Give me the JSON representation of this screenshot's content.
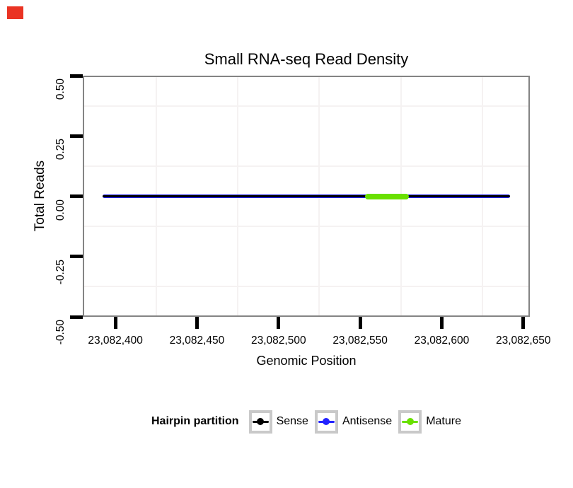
{
  "record_indicator": {
    "color": "#ea3323"
  },
  "chart_data": {
    "type": "segment",
    "title": "Small RNA-seq Read Density",
    "xlabel": "Genomic Position",
    "ylabel": "Total Reads",
    "xlim": [
      23082380,
      23082654
    ],
    "ylim": [
      -0.5,
      0.5
    ],
    "x_ticks": {
      "values": [
        23082400,
        23082450,
        23082500,
        23082550,
        23082600,
        23082650
      ],
      "labels": [
        "23,082,400",
        "23,082,450",
        "23,082,500",
        "23,082,550",
        "23,082,600",
        "23,082,650"
      ]
    },
    "y_ticks": {
      "values": [
        0.5,
        0.25,
        0.0,
        -0.25,
        -0.5
      ],
      "labels": [
        "0.50",
        "0.25",
        "0.00",
        "-0.25",
        "-0.50"
      ]
    },
    "minor_gridlines_x": [
      23082425,
      23082475,
      23082525,
      23082575,
      23082625
    ],
    "minor_gridlines_y": [
      0.375,
      0.125,
      -0.125,
      -0.375
    ],
    "grid": "minor-only",
    "panel_border_color": "#848484",
    "gridline_color": "#f5f2f2",
    "tick_color": "#000000",
    "series": [
      {
        "name": "Antisense",
        "x_start": 23082392,
        "x_end": 23082642,
        "y": 0,
        "color": "#2222ff",
        "thickness": 5
      },
      {
        "name": "Sense",
        "x_start": 23082392,
        "x_end": 23082642,
        "y": 0,
        "color": "#000000",
        "thickness": 3
      },
      {
        "name": "Mature",
        "x_start": 23082553,
        "x_end": 23082580,
        "y": 0,
        "color": "#69e000",
        "thickness": 8
      }
    ],
    "legend": {
      "title": "Hairpin partition",
      "position": "bottom",
      "entries": [
        {
          "label": "Sense",
          "color": "#000000"
        },
        {
          "label": "Antisense",
          "color": "#2222ff"
        },
        {
          "label": "Mature",
          "color": "#69e000"
        }
      ]
    }
  }
}
